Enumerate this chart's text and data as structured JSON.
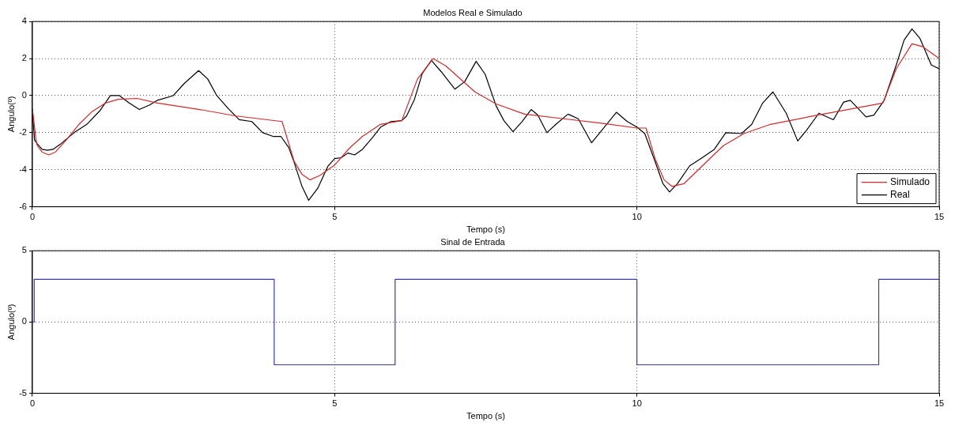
{
  "chart_data": [
    {
      "type": "line",
      "title": "Modelos Real e Simulado",
      "xlabel": "Tempo (s)",
      "ylabel": "Angulo(º)",
      "xlim": [
        0,
        15
      ],
      "ylim": [
        -6,
        4
      ],
      "xticks": [
        0,
        5,
        10,
        15
      ],
      "yticks": [
        -6,
        -4,
        -2,
        0,
        2,
        4
      ],
      "grid": true,
      "legend": "bottom right",
      "series": [
        {
          "name": "Simulado",
          "color": "#d02a2a",
          "x": [
            0,
            0.06,
            0.08,
            0.16,
            0.27,
            0.38,
            0.56,
            0.77,
            0.99,
            1.21,
            1.42,
            1.73,
            2.07,
            2.77,
            3.37,
            4.13,
            4.33,
            4.46,
            4.59,
            4.76,
            5.0,
            5.24,
            5.46,
            5.76,
            6.11,
            6.37,
            6.63,
            6.84,
            7.32,
            7.67,
            8.14,
            8.79,
            9.44,
            10.0,
            10.15,
            10.3,
            10.45,
            10.58,
            10.78,
            11.08,
            11.43,
            11.77,
            12.21,
            12.99,
            14.07,
            14.29,
            14.55,
            14.72,
            15
          ],
          "values": [
            -0.7,
            -2.4,
            -2.7,
            -3.05,
            -3.2,
            -3.05,
            -2.4,
            -1.55,
            -0.85,
            -0.4,
            -0.2,
            -0.15,
            -0.4,
            -0.75,
            -1.1,
            -1.4,
            -3.55,
            -4.25,
            -4.55,
            -4.3,
            -3.75,
            -2.85,
            -2.2,
            -1.55,
            -1.35,
            0.9,
            2.0,
            1.6,
            0.2,
            -0.45,
            -1.0,
            -1.25,
            -1.5,
            -1.75,
            -1.75,
            -3.4,
            -4.55,
            -4.9,
            -4.75,
            -3.8,
            -2.7,
            -2.05,
            -1.55,
            -1.05,
            -0.4,
            1.45,
            2.8,
            2.65,
            2.0
          ]
        },
        {
          "name": "Real",
          "color": "#000000",
          "x": [
            0,
            0.035,
            0.08,
            0.16,
            0.25,
            0.34,
            0.47,
            0.69,
            0.9,
            1.12,
            1.29,
            1.44,
            1.6,
            1.77,
            1.94,
            2.07,
            2.33,
            2.51,
            2.75,
            2.9,
            3.05,
            3.24,
            3.42,
            3.63,
            3.81,
            3.98,
            4.11,
            4.24,
            4.33,
            4.46,
            4.57,
            4.72,
            4.89,
            5.0,
            5.11,
            5.22,
            5.33,
            5.46,
            5.63,
            5.76,
            5.93,
            6.11,
            6.19,
            6.32,
            6.45,
            6.6,
            6.76,
            6.99,
            7.15,
            7.34,
            7.49,
            7.67,
            7.8,
            7.95,
            8.1,
            8.25,
            8.36,
            8.51,
            8.66,
            8.86,
            9.03,
            9.25,
            9.4,
            9.66,
            9.84,
            10.0,
            10.13,
            10.3,
            10.43,
            10.54,
            10.67,
            10.87,
            11.08,
            11.28,
            11.47,
            11.73,
            11.9,
            12.08,
            12.25,
            12.47,
            12.66,
            12.81,
            13.01,
            13.25,
            13.42,
            13.53,
            13.79,
            13.92,
            14.09,
            14.29,
            14.42,
            14.55,
            14.68,
            14.87,
            15
          ],
          "values": [
            -0.75,
            -2.4,
            -2.6,
            -2.9,
            -2.95,
            -2.9,
            -2.6,
            -2.0,
            -1.55,
            -0.8,
            0,
            0,
            -0.4,
            -0.75,
            -0.5,
            -0.25,
            0,
            0.65,
            1.35,
            0.9,
            0,
            -0.7,
            -1.3,
            -1.4,
            -2.0,
            -2.2,
            -2.2,
            -2.8,
            -3.6,
            -4.9,
            -5.65,
            -5.0,
            -3.8,
            -3.4,
            -3.35,
            -3.1,
            -3.2,
            -2.9,
            -2.25,
            -1.7,
            -1.4,
            -1.35,
            -1.1,
            -0.2,
            1.2,
            1.9,
            1.3,
            0.35,
            0.75,
            1.85,
            1.15,
            -0.55,
            -1.35,
            -1.95,
            -1.4,
            -0.75,
            -1.05,
            -2.0,
            -1.55,
            -1.0,
            -1.25,
            -2.55,
            -1.95,
            -0.9,
            -1.4,
            -1.7,
            -2.05,
            -3.55,
            -4.75,
            -5.2,
            -4.75,
            -3.8,
            -3.35,
            -2.9,
            -2.0,
            -2.05,
            -1.55,
            -0.4,
            0.2,
            -0.95,
            -2.45,
            -1.85,
            -0.95,
            -1.3,
            -0.35,
            -0.25,
            -1.15,
            -1.05,
            -0.25,
            1.65,
            3.0,
            3.6,
            3.1,
            1.65,
            1.45
          ]
        }
      ]
    },
    {
      "type": "step",
      "title": "Sinal de Entrada",
      "xlabel": "Tempo (s)",
      "ylabel": "Angulo(º)",
      "xlim": [
        0,
        15
      ],
      "ylim": [
        -5,
        5
      ],
      "xticks": [
        0,
        5,
        10,
        15
      ],
      "yticks": [
        -5,
        0,
        5
      ],
      "grid": true,
      "color": "#3a3aa8",
      "x": [
        0,
        0.03,
        4,
        6,
        10,
        14,
        15
      ],
      "values": [
        0,
        3,
        -3,
        3,
        -3,
        3,
        3
      ]
    }
  ]
}
